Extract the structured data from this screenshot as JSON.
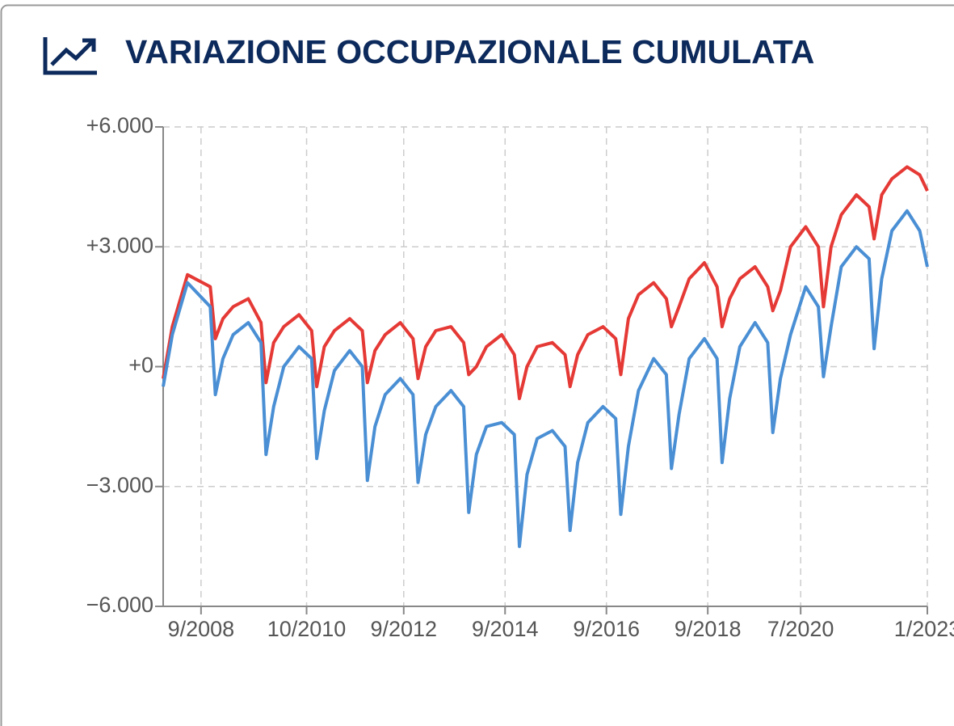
{
  "chart_data": {
    "type": "line",
    "title": "VARIAZIONE OCCUPAZIONALE CUMULATA",
    "x": [
      2007.92,
      2008.1,
      2008.4,
      2008.85,
      2008.95,
      2009.1,
      2009.3,
      2009.6,
      2009.85,
      2009.95,
      2010.1,
      2010.3,
      2010.6,
      2010.85,
      2010.95,
      2011.1,
      2011.3,
      2011.6,
      2011.85,
      2011.95,
      2012.1,
      2012.3,
      2012.6,
      2012.85,
      2012.95,
      2013.1,
      2013.3,
      2013.6,
      2013.85,
      2013.95,
      2014.1,
      2014.3,
      2014.6,
      2014.85,
      2014.95,
      2015.1,
      2015.3,
      2015.6,
      2015.85,
      2015.95,
      2016.1,
      2016.3,
      2016.6,
      2016.85,
      2016.95,
      2017.1,
      2017.3,
      2017.6,
      2017.85,
      2017.95,
      2018.1,
      2018.3,
      2018.6,
      2018.85,
      2018.95,
      2019.1,
      2019.3,
      2019.6,
      2019.85,
      2019.95,
      2020.1,
      2020.3,
      2020.6,
      2020.85,
      2020.95,
      2021.1,
      2021.3,
      2021.6,
      2021.85,
      2021.95,
      2022.1,
      2022.3,
      2022.6,
      2022.85,
      2023.0
    ],
    "series": [
      {
        "color": "#e53935",
        "values": [
          -300,
          1000,
          2300,
          2000,
          700,
          1200,
          1500,
          1700,
          1100,
          -400,
          600,
          1000,
          1300,
          900,
          -500,
          500,
          900,
          1200,
          900,
          -400,
          400,
          800,
          1100,
          700,
          -300,
          500,
          900,
          1000,
          600,
          -200,
          0,
          500,
          800,
          300,
          -800,
          0,
          500,
          600,
          300,
          -500,
          300,
          800,
          1000,
          700,
          -200,
          1200,
          1800,
          2100,
          1700,
          1000,
          1500,
          2200,
          2600,
          2000,
          1000,
          1700,
          2200,
          2500,
          2000,
          1400,
          1900,
          3000,
          3500,
          3000,
          1500,
          3000,
          3800,
          4300,
          4000,
          3200,
          4300,
          4700,
          5000,
          4800,
          4400
        ]
      },
      {
        "color": "#4a8fd4",
        "values": [
          -500,
          800,
          2100,
          1500,
          -700,
          200,
          800,
          1100,
          600,
          -2200,
          -1000,
          0,
          500,
          200,
          -2300,
          -1100,
          -100,
          400,
          0,
          -2850,
          -1500,
          -700,
          -300,
          -700,
          -2900,
          -1700,
          -1000,
          -600,
          -1000,
          -3650,
          -2200,
          -1500,
          -1400,
          -1700,
          -4500,
          -2700,
          -1800,
          -1600,
          -2000,
          -4100,
          -2400,
          -1400,
          -1000,
          -1300,
          -3700,
          -2000,
          -600,
          200,
          -200,
          -2550,
          -1200,
          200,
          700,
          200,
          -2400,
          -800,
          500,
          1100,
          600,
          -1650,
          -300,
          800,
          2000,
          1500,
          -250,
          1000,
          2500,
          3000,
          2700,
          450,
          2200,
          3400,
          3900,
          3400,
          2500
        ]
      }
    ],
    "xlim": [
      2007.92,
      2023.0
    ],
    "xticks": [
      {
        "value": 2008.667,
        "label": "9/2008"
      },
      {
        "value": 2010.75,
        "label": "10/2010"
      },
      {
        "value": 2012.667,
        "label": "9/2012"
      },
      {
        "value": 2014.667,
        "label": "9/2014"
      },
      {
        "value": 2016.667,
        "label": "9/2016"
      },
      {
        "value": 2018.667,
        "label": "9/2018"
      },
      {
        "value": 2020.5,
        "label": "7/2020"
      },
      {
        "value": 2023.0,
        "label": "1/2023"
      }
    ],
    "ylim": [
      -6000,
      6000
    ],
    "yticks": [
      {
        "value": 6000,
        "label": "+6.000"
      },
      {
        "value": 3000,
        "label": "+3.000"
      },
      {
        "value": 0,
        "label": "+0"
      },
      {
        "value": -3000,
        "label": "−3.000"
      },
      {
        "value": -6000,
        "label": "−6.000"
      }
    ],
    "grid": true
  }
}
